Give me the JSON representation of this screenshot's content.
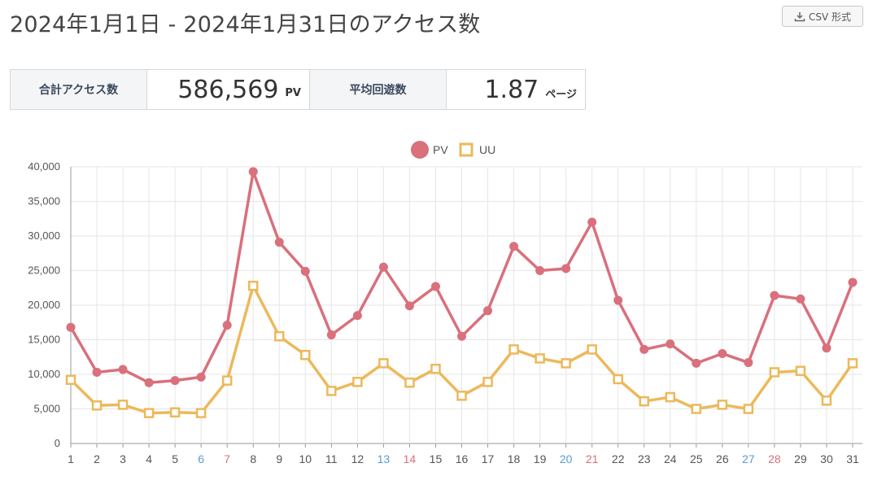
{
  "header": {
    "title": "2024年1月1日 - 2024年1月31日のアクセス数",
    "csv_button": "CSV 形式"
  },
  "stats": {
    "total_label": "合計アクセス数",
    "total_value": "586,569",
    "total_unit": "PV",
    "avg_label": "平均回遊数",
    "avg_value": "1.87",
    "avg_unit": "ページ"
  },
  "colors": {
    "pv": "#d9707c",
    "uu": "#ecb95b",
    "weekday_tick": "#555555",
    "saturday_tick": "#5a9ad6",
    "sunday_tick": "#d9707c",
    "grid": "#e6e6e6"
  },
  "chart_data": {
    "type": "line",
    "title": "",
    "xlabel": "",
    "ylabel": "",
    "ylim": [
      0,
      40000
    ],
    "yticks": [
      0,
      5000,
      10000,
      15000,
      20000,
      25000,
      30000,
      35000,
      40000
    ],
    "ytick_labels": [
      "0",
      "5,000",
      "10,000",
      "15,000",
      "20,000",
      "25,000",
      "30,000",
      "35,000",
      "40,000"
    ],
    "legend_position": "top-center",
    "grid": true,
    "categories": [
      "1",
      "2",
      "3",
      "4",
      "5",
      "6",
      "7",
      "8",
      "9",
      "10",
      "11",
      "12",
      "13",
      "14",
      "15",
      "16",
      "17",
      "18",
      "19",
      "20",
      "21",
      "22",
      "23",
      "24",
      "25",
      "26",
      "27",
      "28",
      "29",
      "30",
      "31"
    ],
    "saturdays": [
      "6",
      "13",
      "20",
      "27"
    ],
    "sundays": [
      "7",
      "14",
      "21",
      "28"
    ],
    "series": [
      {
        "name": "PV",
        "marker": "circle",
        "values": [
          16800,
          10300,
          10700,
          8800,
          9100,
          9600,
          17100,
          39300,
          29100,
          24900,
          15700,
          18500,
          25500,
          19900,
          22700,
          15500,
          19200,
          28500,
          25000,
          25300,
          32000,
          20700,
          13600,
          14400,
          11600,
          13000,
          11700,
          21400,
          20900,
          13800,
          23300
        ]
      },
      {
        "name": "UU",
        "marker": "square",
        "values": [
          9200,
          5500,
          5600,
          4400,
          4500,
          4400,
          9100,
          22800,
          15500,
          12800,
          7600,
          8900,
          11600,
          8800,
          10800,
          6900,
          8900,
          13600,
          12300,
          11600,
          13600,
          9300,
          6100,
          6700,
          5000,
          5600,
          5000,
          10300,
          10500,
          6200,
          11600
        ]
      }
    ]
  }
}
